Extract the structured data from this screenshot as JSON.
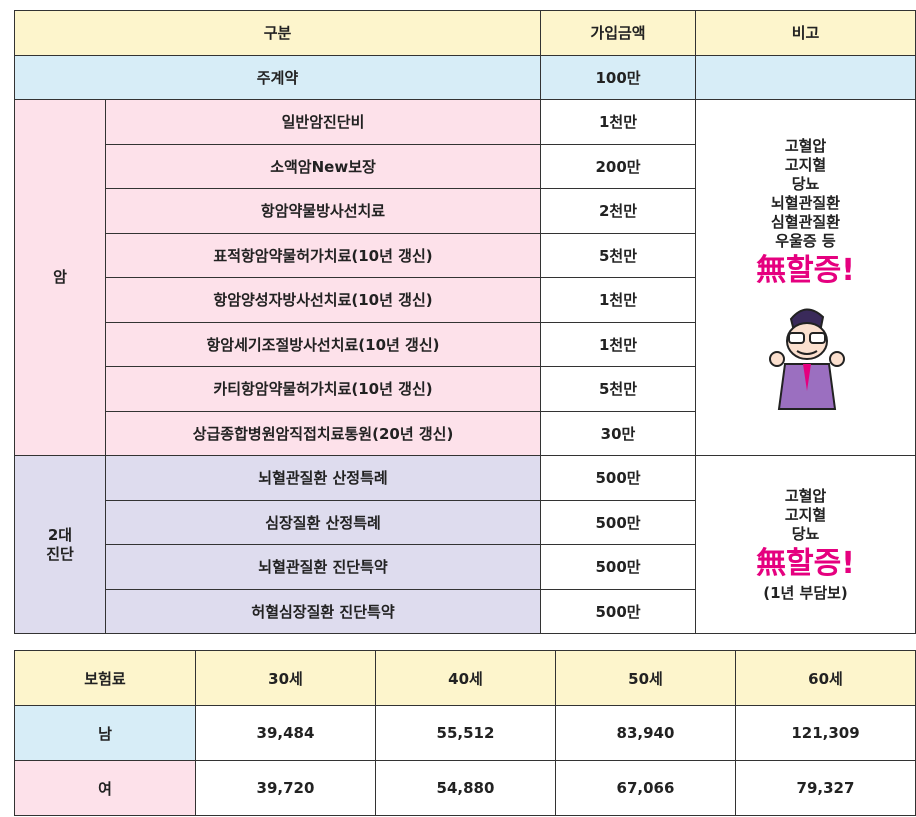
{
  "coverage_table": {
    "header": [
      "구분",
      "가입금액",
      "비고"
    ],
    "main_contract": {
      "label": "주계약",
      "amount": "100만"
    },
    "groups": [
      {
        "name": [
          "암"
        ],
        "rows": [
          {
            "item": "일반암진단비",
            "amount": "1천만"
          },
          {
            "item": "소액암New보장",
            "amount": "200만"
          },
          {
            "item": "항암약물방사선치료",
            "amount": "2천만"
          },
          {
            "item": "표적항암약물허가치료(10년 갱신)",
            "amount": "5천만"
          },
          {
            "item": "항암양성자방사선치료(10년 갱신)",
            "amount": "1천만"
          },
          {
            "item": "항암세기조절방사선치료(10년 갱신)",
            "amount": "1천만"
          },
          {
            "item": "카티항암약물허가치료(10년 갱신)",
            "amount": "5천만"
          },
          {
            "item": "상급종합병원암직접치료통원(20년 갱신)",
            "amount": "30만"
          }
        ],
        "note": {
          "lines": [
            "고혈압",
            "고지혈",
            "당뇨",
            "뇌혈관질환",
            "심혈관질환",
            "우울증 등"
          ],
          "badge": "無할증!"
        }
      },
      {
        "name": [
          "2대",
          "진단"
        ],
        "rows": [
          {
            "item": "뇌혈관질환 산정특례",
            "amount": "500만"
          },
          {
            "item": "심장질환 산정특례",
            "amount": "500만"
          },
          {
            "item": "뇌혈관질환 진단특약",
            "amount": "500만"
          },
          {
            "item": "허혈심장질환 진단특약",
            "amount": "500만"
          }
        ],
        "note": {
          "lines": [
            "고혈압",
            "고지혈",
            "당뇨"
          ],
          "badge": "無할증!",
          "footnote": "(1년 부담보)"
        }
      }
    ]
  },
  "premium_table": {
    "header": [
      "보험료",
      "30세",
      "40세",
      "50세",
      "60세"
    ],
    "rows": [
      {
        "label": "남",
        "values": [
          "39,484",
          "55,512",
          "83,940",
          "121,309"
        ]
      },
      {
        "label": "여",
        "values": [
          "39,720",
          "54,880",
          "67,066",
          "79,327"
        ]
      }
    ]
  }
}
